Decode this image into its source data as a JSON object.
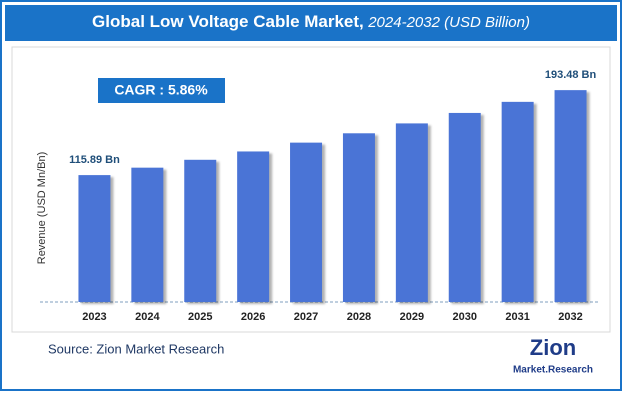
{
  "chart_data": {
    "type": "bar",
    "title": "Global Low Voltage Cable Market,",
    "subtitle": "2024-2032 (USD Billion)",
    "annotation": "CAGR : 5.86%",
    "y_label": "Revenue (USD Mn/Bn)",
    "source": "Source: Zion Market Research",
    "categories": [
      "2023",
      "2024",
      "2025",
      "2026",
      "2027",
      "2028",
      "2029",
      "2030",
      "2031",
      "2032"
    ],
    "values": [
      115.89,
      122.68,
      129.87,
      137.48,
      145.54,
      154.07,
      163.1,
      172.66,
      182.78,
      193.48
    ],
    "value_labels": [
      "115.89 Bn",
      null,
      null,
      null,
      null,
      null,
      null,
      null,
      null,
      "193.48 Bn"
    ],
    "color": "#4a74d6",
    "ylim": [
      0,
      200
    ]
  },
  "logo": {
    "name": "Zion",
    "tagline": "Market.Research"
  }
}
